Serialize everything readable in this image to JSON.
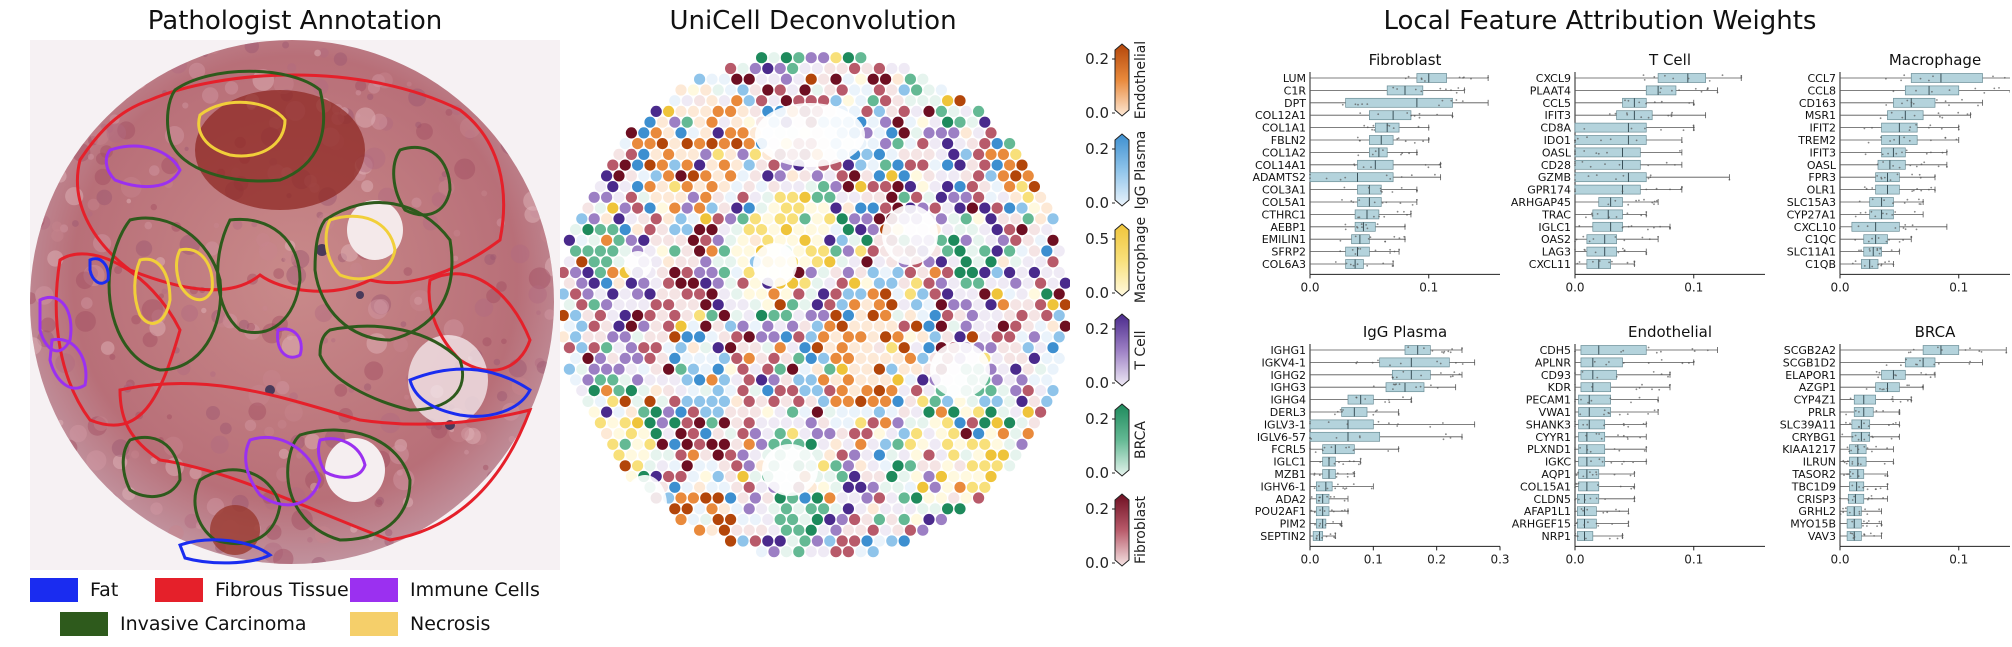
{
  "panels": {
    "annotation_title": "Pathologist Annotation",
    "deconv_title": "UniCell Deconvolution",
    "attribution_title": "Local Feature Attribution Weights"
  },
  "legend": [
    {
      "label": "Fat",
      "color": "#1a2cf0"
    },
    {
      "label": "Fibrous Tissue",
      "color": "#e5202a"
    },
    {
      "label": "Immune Cells",
      "color": "#9b30f0"
    },
    {
      "label": "Invasive Carcinoma",
      "color": "#2e5a1c"
    },
    {
      "label": "Necrosis",
      "color": "#f5cf6a"
    }
  ],
  "colorbars": [
    {
      "label": "Endothelial",
      "ticks": [
        "0.2",
        "0.0"
      ],
      "colors": [
        "#fde9d6",
        "#e98a3c",
        "#b3460a"
      ]
    },
    {
      "label": "IgG Plasma",
      "ticks": [
        "0.2",
        "0.0"
      ],
      "colors": [
        "#eaf3fb",
        "#8fc4ea",
        "#3d8fd0"
      ]
    },
    {
      "label": "Macrophage",
      "ticks": [
        "0.5",
        "0.0"
      ],
      "colors": [
        "#fff9df",
        "#f8e07a",
        "#efc43a"
      ]
    },
    {
      "label": "T Cell",
      "ticks": [
        "0.2",
        "0.0"
      ],
      "colors": [
        "#efeaf5",
        "#9c7fc4",
        "#4a2a8c"
      ]
    },
    {
      "label": "BRCA",
      "ticks": [
        "0.2",
        "0.0"
      ],
      "colors": [
        "#e6f4ee",
        "#64b994",
        "#1e8a5c"
      ]
    },
    {
      "label": "Fibroblast",
      "ticks": [
        "0.2",
        "0.0"
      ],
      "colors": [
        "#f5e4e4",
        "#b85a6a",
        "#6e0f22"
      ]
    }
  ],
  "chart_data": [
    {
      "type": "box",
      "title": "Fibroblast",
      "xlim": [
        0,
        0.16
      ],
      "xticks": [
        0.0,
        0.1
      ],
      "xtick_labels": [
        "0.0",
        "0.1"
      ],
      "categories": [
        "LUM",
        "C1R",
        "DPT",
        "COL12A1",
        "COL1A1",
        "FBLN2",
        "COL1A2",
        "COL14A1",
        "ADAMTS2",
        "COL3A1",
        "COL5A1",
        "CTHRC1",
        "AEBP1",
        "EMILIN1",
        "SFRP2",
        "COL6A3"
      ],
      "median": [
        0.1,
        0.08,
        0.09,
        0.07,
        0.065,
        0.06,
        0.058,
        0.055,
        0.04,
        0.05,
        0.05,
        0.048,
        0.045,
        0.042,
        0.04,
        0.038
      ],
      "q1": [
        0.09,
        0.065,
        0.03,
        0.05,
        0.055,
        0.05,
        0.05,
        0.04,
        0.0,
        0.04,
        0.04,
        0.038,
        0.038,
        0.035,
        0.03,
        0.03
      ],
      "q3": [
        0.115,
        0.095,
        0.12,
        0.085,
        0.075,
        0.07,
        0.065,
        0.07,
        0.07,
        0.06,
        0.06,
        0.058,
        0.055,
        0.05,
        0.05,
        0.045
      ],
      "wmin": [
        0.0,
        0.0,
        0.0,
        0.0,
        0.0,
        0.0,
        0.0,
        0.0,
        0.0,
        0.0,
        0.0,
        0.0,
        0.0,
        0.0,
        0.0,
        0.0
      ],
      "wmax": [
        0.15,
        0.13,
        0.15,
        0.12,
        0.1,
        0.1,
        0.09,
        0.11,
        0.11,
        0.09,
        0.09,
        0.085,
        0.08,
        0.08,
        0.075,
        0.07
      ]
    },
    {
      "type": "box",
      "title": "T Cell",
      "xlim": [
        0,
        0.16
      ],
      "xticks": [
        0.0,
        0.1
      ],
      "xtick_labels": [
        "0.0",
        "0.1"
      ],
      "categories": [
        "CXCL9",
        "PLAAT4",
        "CCL5",
        "IFIT3",
        "CD8A",
        "IDO1",
        "OASL",
        "CD28",
        "GZMB",
        "GPR174",
        "ARHGAP45",
        "TRAC",
        "IGLC1",
        "OAS2",
        "LAG3",
        "CXCL11"
      ],
      "median": [
        0.095,
        0.07,
        0.05,
        0.05,
        0.045,
        0.045,
        0.04,
        0.04,
        0.045,
        0.04,
        0.03,
        0.028,
        0.03,
        0.025,
        0.025,
        0.02
      ],
      "q1": [
        0.07,
        0.06,
        0.04,
        0.035,
        0.0,
        0.0,
        0.0,
        0.0,
        0.0,
        0.0,
        0.02,
        0.015,
        0.015,
        0.01,
        0.01,
        0.01
      ],
      "q3": [
        0.11,
        0.085,
        0.06,
        0.065,
        0.06,
        0.06,
        0.055,
        0.055,
        0.06,
        0.055,
        0.04,
        0.04,
        0.04,
        0.035,
        0.035,
        0.03
      ],
      "wmin": [
        0.0,
        0.0,
        0.0,
        0.0,
        0.0,
        0.0,
        0.0,
        0.0,
        0.0,
        0.0,
        0.0,
        0.0,
        0.0,
        0.0,
        0.0,
        0.0
      ],
      "wmax": [
        0.14,
        0.12,
        0.1,
        0.11,
        0.1,
        0.09,
        0.09,
        0.09,
        0.13,
        0.09,
        0.07,
        0.06,
        0.08,
        0.07,
        0.06,
        0.05
      ]
    },
    {
      "type": "box",
      "title": "Macrophage",
      "xlim": [
        0,
        0.16
      ],
      "xticks": [
        0.0,
        0.1
      ],
      "xtick_labels": [
        "0.0",
        "0.1"
      ],
      "categories": [
        "CCL7",
        "CCL8",
        "CD163",
        "MSR1",
        "IFIT2",
        "TREM2",
        "IFIT3",
        "OASL",
        "FPR3",
        "OLR1",
        "SLC15A3",
        "CYP27A1",
        "CXCL10",
        "C1QC",
        "SLC11A1",
        "C1QB"
      ],
      "median": [
        0.085,
        0.075,
        0.06,
        0.055,
        0.05,
        0.05,
        0.045,
        0.042,
        0.04,
        0.04,
        0.035,
        0.035,
        0.03,
        0.03,
        0.028,
        0.025
      ],
      "q1": [
        0.06,
        0.055,
        0.045,
        0.04,
        0.035,
        0.035,
        0.035,
        0.032,
        0.03,
        0.03,
        0.025,
        0.025,
        0.01,
        0.02,
        0.02,
        0.018
      ],
      "q3": [
        0.12,
        0.1,
        0.08,
        0.07,
        0.065,
        0.065,
        0.055,
        0.055,
        0.05,
        0.05,
        0.045,
        0.045,
        0.05,
        0.04,
        0.035,
        0.032
      ],
      "wmin": [
        0.0,
        0.0,
        0.0,
        0.0,
        0.0,
        0.0,
        0.0,
        0.0,
        0.0,
        0.0,
        0.0,
        0.0,
        0.0,
        0.0,
        0.0,
        0.0
      ],
      "wmax": [
        0.16,
        0.15,
        0.12,
        0.11,
        0.1,
        0.1,
        0.09,
        0.09,
        0.08,
        0.08,
        0.07,
        0.07,
        0.09,
        0.06,
        0.05,
        0.045
      ]
    },
    {
      "type": "box",
      "title": "IgG Plasma",
      "xlim": [
        0,
        0.3
      ],
      "xticks": [
        0.0,
        0.1,
        0.2,
        0.3
      ],
      "xtick_labels": [
        "0.0",
        "0.1",
        "0.2",
        "0.3"
      ],
      "categories": [
        "IGHG1",
        "IGKV4-1",
        "IGHG2",
        "IGHG3",
        "IGHG4",
        "DERL3",
        "IGLV3-1",
        "IGLV6-57",
        "FCRL5",
        "IGLC1",
        "MZB1",
        "IGHV6-1",
        "ADA2",
        "POU2AF1",
        "PIM2",
        "SEPTIN2"
      ],
      "median": [
        0.17,
        0.16,
        0.16,
        0.15,
        0.08,
        0.07,
        0.06,
        0.06,
        0.04,
        0.03,
        0.03,
        0.025,
        0.02,
        0.02,
        0.02,
        0.015
      ],
      "q1": [
        0.15,
        0.11,
        0.13,
        0.12,
        0.06,
        0.05,
        0.0,
        0.0,
        0.02,
        0.02,
        0.02,
        0.01,
        0.01,
        0.01,
        0.01,
        0.005
      ],
      "q3": [
        0.19,
        0.22,
        0.19,
        0.18,
        0.1,
        0.09,
        0.1,
        0.11,
        0.07,
        0.04,
        0.04,
        0.035,
        0.03,
        0.03,
        0.025,
        0.02
      ],
      "wmin": [
        0.0,
        0.0,
        0.0,
        0.0,
        0.0,
        0.0,
        0.0,
        0.0,
        0.0,
        0.0,
        0.0,
        0.0,
        0.0,
        0.0,
        0.0,
        0.0
      ],
      "wmax": [
        0.24,
        0.26,
        0.24,
        0.23,
        0.16,
        0.14,
        0.26,
        0.24,
        0.14,
        0.08,
        0.07,
        0.1,
        0.06,
        0.06,
        0.05,
        0.04
      ]
    },
    {
      "type": "box",
      "title": "Endothelial",
      "xlim": [
        0,
        0.16
      ],
      "xticks": [
        0.0,
        0.1
      ],
      "xtick_labels": [
        "0.0",
        "0.1"
      ],
      "categories": [
        "CDH5",
        "APLNR",
        "CD93",
        "KDR",
        "PECAM1",
        "VWA1",
        "SHANK3",
        "CYYR1",
        "PLXND1",
        "IGKC",
        "AQP1",
        "COL15A1",
        "CLDN5",
        "AFAP1L1",
        "ARHGEF15",
        "NRP1"
      ],
      "median": [
        0.02,
        0.015,
        0.015,
        0.015,
        0.012,
        0.012,
        0.012,
        0.01,
        0.01,
        0.01,
        0.01,
        0.01,
        0.008,
        0.008,
        0.008,
        0.008
      ],
      "q1": [
        0.005,
        0.005,
        0.005,
        0.005,
        0.003,
        0.003,
        0.003,
        0.003,
        0.003,
        0.003,
        0.003,
        0.003,
        0.002,
        0.002,
        0.002,
        0.002
      ],
      "q3": [
        0.06,
        0.04,
        0.035,
        0.03,
        0.03,
        0.03,
        0.025,
        0.025,
        0.025,
        0.025,
        0.02,
        0.02,
        0.02,
        0.018,
        0.018,
        0.015
      ],
      "wmin": [
        0.0,
        0.0,
        0.0,
        0.0,
        0.0,
        0.0,
        0.0,
        0.0,
        0.0,
        0.0,
        0.0,
        0.0,
        0.0,
        0.0,
        0.0,
        0.0
      ],
      "wmax": [
        0.12,
        0.1,
        0.08,
        0.08,
        0.07,
        0.07,
        0.06,
        0.06,
        0.06,
        0.06,
        0.05,
        0.05,
        0.05,
        0.045,
        0.045,
        0.04
      ]
    },
    {
      "type": "box",
      "title": "BRCA",
      "xlim": [
        0,
        0.16
      ],
      "xticks": [
        0.0,
        0.1
      ],
      "xtick_labels": [
        "0.0",
        "0.1"
      ],
      "categories": [
        "SCGB2A2",
        "SCGB1D2",
        "ELAPOR1",
        "AZGP1",
        "CYP4Z1",
        "PRLR",
        "SLC39A11",
        "CRYBG1",
        "KIAA1217",
        "ILRUN",
        "TASOR2",
        "TBC1D9",
        "CRISP3",
        "GRHL2",
        "MYO15B",
        "VAV3"
      ],
      "median": [
        0.085,
        0.07,
        0.045,
        0.04,
        0.02,
        0.02,
        0.018,
        0.018,
        0.015,
        0.015,
        0.015,
        0.014,
        0.013,
        0.012,
        0.012,
        0.012
      ],
      "q1": [
        0.07,
        0.055,
        0.035,
        0.03,
        0.012,
        0.012,
        0.01,
        0.01,
        0.008,
        0.008,
        0.008,
        0.008,
        0.007,
        0.006,
        0.006,
        0.006
      ],
      "q3": [
        0.1,
        0.08,
        0.055,
        0.05,
        0.03,
        0.028,
        0.025,
        0.025,
        0.022,
        0.022,
        0.02,
        0.02,
        0.02,
        0.018,
        0.018,
        0.018
      ],
      "wmin": [
        0.0,
        0.0,
        0.0,
        0.0,
        0.0,
        0.0,
        0.0,
        0.0,
        0.0,
        0.0,
        0.0,
        0.0,
        0.0,
        0.0,
        0.0,
        0.0
      ],
      "wmax": [
        0.14,
        0.12,
        0.08,
        0.07,
        0.06,
        0.05,
        0.05,
        0.05,
        0.045,
        0.045,
        0.04,
        0.04,
        0.04,
        0.035,
        0.035,
        0.035
      ]
    }
  ]
}
